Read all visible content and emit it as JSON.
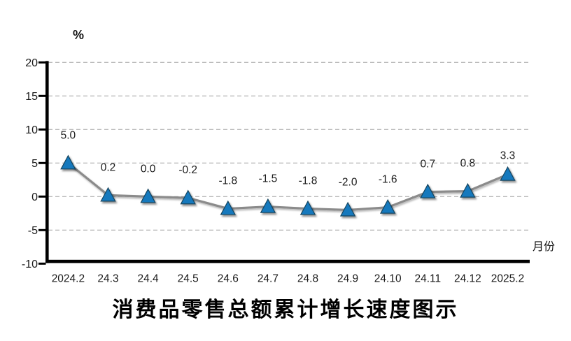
{
  "chart_data": {
    "type": "line",
    "title": "消费品零售总额累计增长速度图示",
    "unit_label": "%",
    "x_axis_label": "月份",
    "categories": [
      "2024.2",
      "24.3",
      "24.4",
      "24.5",
      "24.6",
      "24.7",
      "24.8",
      "24.9",
      "24.10",
      "24.11",
      "24.12",
      "2025.2"
    ],
    "series": [
      {
        "name": "消费品零售总额累计增长速度",
        "values": [
          5.0,
          0.2,
          0.0,
          -0.2,
          -1.8,
          -1.5,
          -1.8,
          -2.0,
          -1.6,
          0.7,
          0.8,
          3.3
        ],
        "data_labels": [
          "5.0",
          "0.2",
          "0.0",
          "-0.2",
          "-1.8",
          "-1.5",
          "-1.8",
          "-2.0",
          "-1.6",
          "0.7",
          "0.8",
          "3.3"
        ]
      }
    ],
    "y_ticks": [
      20,
      15,
      10,
      5,
      0,
      -5,
      -10
    ],
    "y_tick_labels": [
      "20",
      "15",
      "10",
      "5",
      "0",
      "-5",
      "-10"
    ],
    "ylim": [
      -10,
      20
    ],
    "grid": "horizontal-dashed",
    "legend": "none",
    "marker": "triangle-up",
    "colors": {
      "marker_fill": "#1879BD",
      "marker_edge": "#17455F",
      "line": "#8B8B8B",
      "grid": "#A3A3A3",
      "axis": "#000000",
      "text": "#1A1A1A"
    }
  }
}
